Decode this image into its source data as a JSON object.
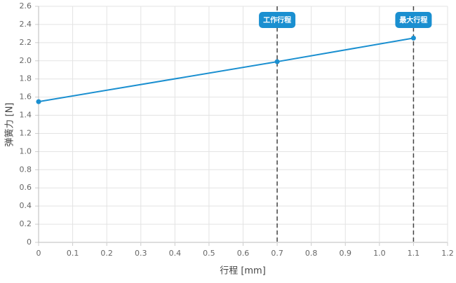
{
  "chart_data": {
    "type": "line",
    "x": [
      0,
      0.7,
      1.1
    ],
    "series": [
      {
        "color": "#1a8fd0",
        "values": [
          1.55,
          1.99,
          2.25
        ]
      }
    ],
    "xlabel": "行程 [mm]",
    "ylabel": "弹簧力 [N]",
    "xlim": [
      0,
      1.2
    ],
    "xticks": [
      0,
      0.1,
      0.2,
      0.3,
      0.4,
      0.5,
      0.6,
      0.7,
      0.8,
      0.9,
      {
        "value": 1,
        "label": "1.0"
      },
      1.1,
      1.2
    ],
    "ylim": [
      0,
      2.6
    ],
    "yticks": [
      0,
      0.2,
      0.4,
      0.6,
      0.8,
      {
        "value": 1,
        "label": "1.0"
      },
      1.2,
      1.4,
      1.6,
      1.8,
      {
        "value": 2,
        "label": "2.0"
      },
      2.2,
      2.4,
      2.6
    ],
    "grid": true,
    "annotations": [
      {
        "x": 0.7,
        "text": "工作行程"
      },
      {
        "x": 1.1,
        "text": "最大行程"
      }
    ],
    "annotation_color": "#1a8fd0"
  }
}
